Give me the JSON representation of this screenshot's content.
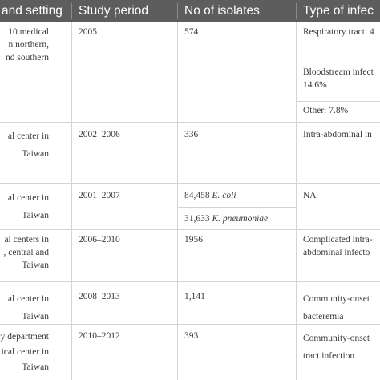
{
  "headers": [
    "and setting",
    "Study period",
    "No of isolates",
    "Type of infec"
  ],
  "rows": [
    {
      "setting": [
        "10 medical",
        "n northern,",
        "nd southern"
      ],
      "period": "2005",
      "isolates": [
        "574"
      ],
      "infection": [
        "Respiratory tract: 4",
        "Bloodstream infect",
        "14.6%",
        "Other: 7.8%"
      ]
    },
    {
      "setting": [
        "al center in",
        "Taiwan"
      ],
      "period": "2002–2006",
      "isolates": [
        "336"
      ],
      "infection": [
        "Intra-abdominal in"
      ]
    },
    {
      "setting": [
        "al center in",
        "Taiwan"
      ],
      "period": "2001–2007",
      "isolates": [
        {
          "count": "84,458",
          "organism": "E. coli"
        },
        {
          "count": "31,633",
          "organism": "K. pneumoniae"
        }
      ],
      "infection": [
        "NA"
      ]
    },
    {
      "setting": [
        "al centers in",
        ", central and",
        "Taiwan"
      ],
      "period": "2006–2010",
      "isolates": [
        "1956"
      ],
      "infection": [
        "Complicated intra-",
        "abdominal infecto"
      ]
    },
    {
      "setting": [
        "al center in",
        "Taiwan"
      ],
      "period": "2008–2013",
      "isolates": [
        "1,141"
      ],
      "infection": [
        "Community-onset",
        "bacteremia"
      ]
    },
    {
      "setting": [
        "acy department",
        "ical center in",
        "Taiwan"
      ],
      "period": "2010–2012",
      "isolates": [
        "393"
      ],
      "infection": [
        "Community-onset",
        "tract infection"
      ]
    }
  ]
}
